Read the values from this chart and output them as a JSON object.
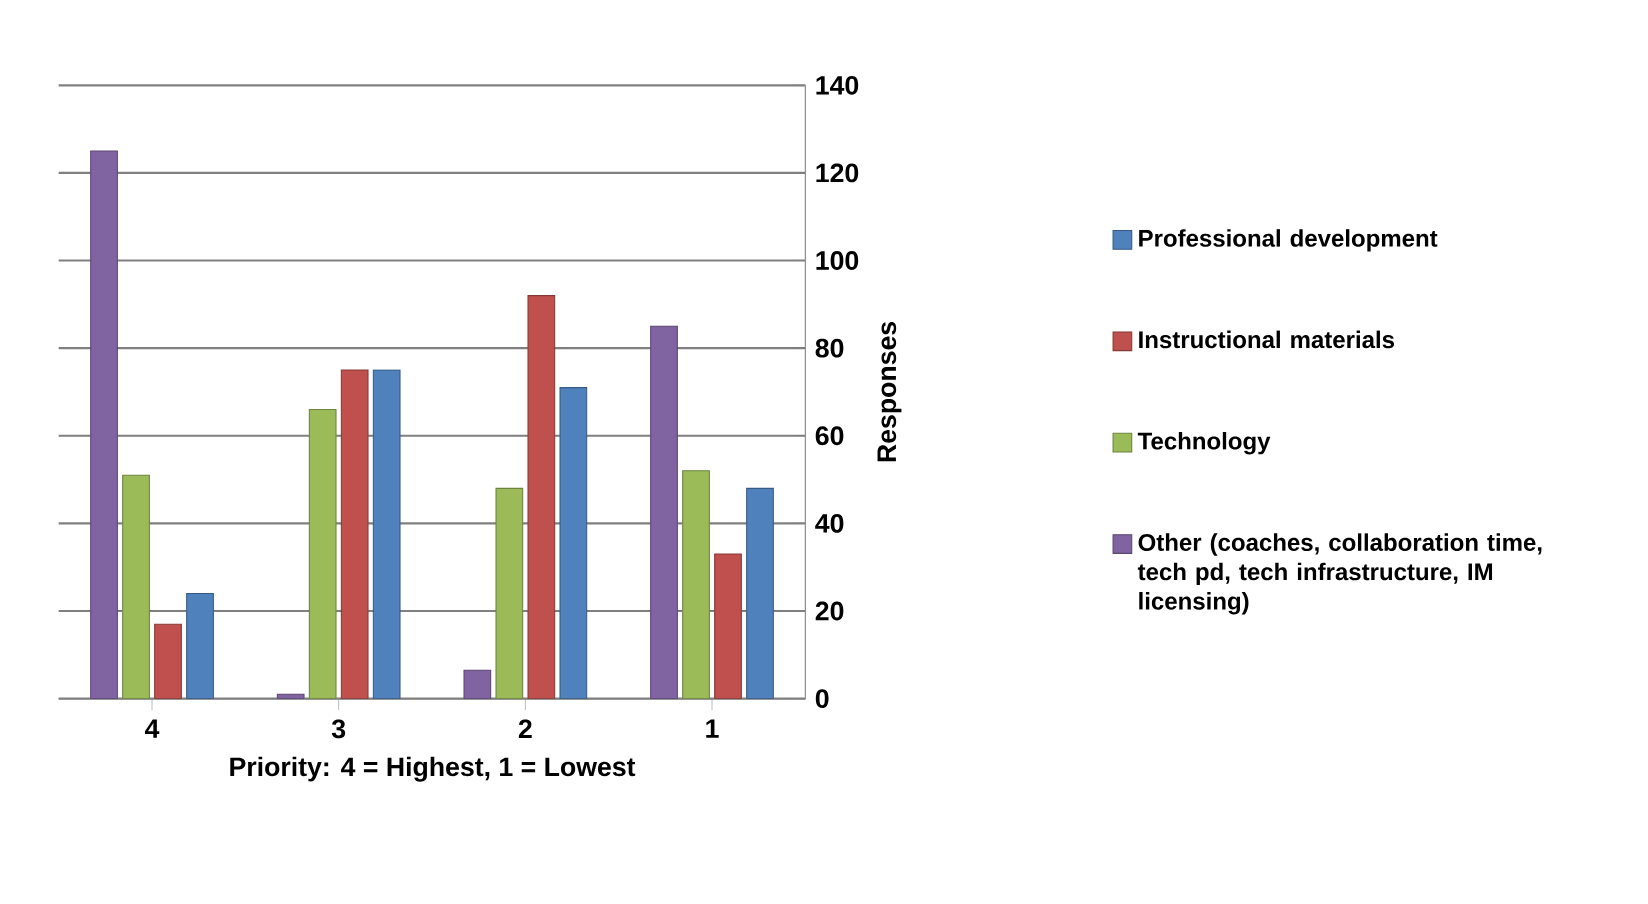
{
  "chart_data": {
    "type": "bar",
    "xlabel": "Priority: 4 = Highest, 1 = Lowest",
    "ylabel": "Responses",
    "categories": [
      "4",
      "3",
      "2",
      "1"
    ],
    "series": [
      {
        "name": "Other (coaches, collaboration time, tech pd, tech infrastructure, IM licensing)",
        "color": "#8064a2",
        "values": [
          125,
          1,
          6.5,
          85
        ]
      },
      {
        "name": "Technology",
        "color": "#9bbb59",
        "values": [
          51,
          66,
          48,
          52
        ]
      },
      {
        "name": "Instructional materials",
        "color": "#c0504d",
        "values": [
          17,
          75,
          92,
          33
        ]
      },
      {
        "name": "Professional development",
        "color": "#4f81bd",
        "values": [
          24,
          75,
          71,
          48
        ]
      }
    ],
    "ylim": [
      0,
      140
    ],
    "yticks": [
      0,
      20,
      40,
      60,
      80,
      100,
      120,
      140
    ],
    "grid": "y",
    "legend": "right"
  }
}
